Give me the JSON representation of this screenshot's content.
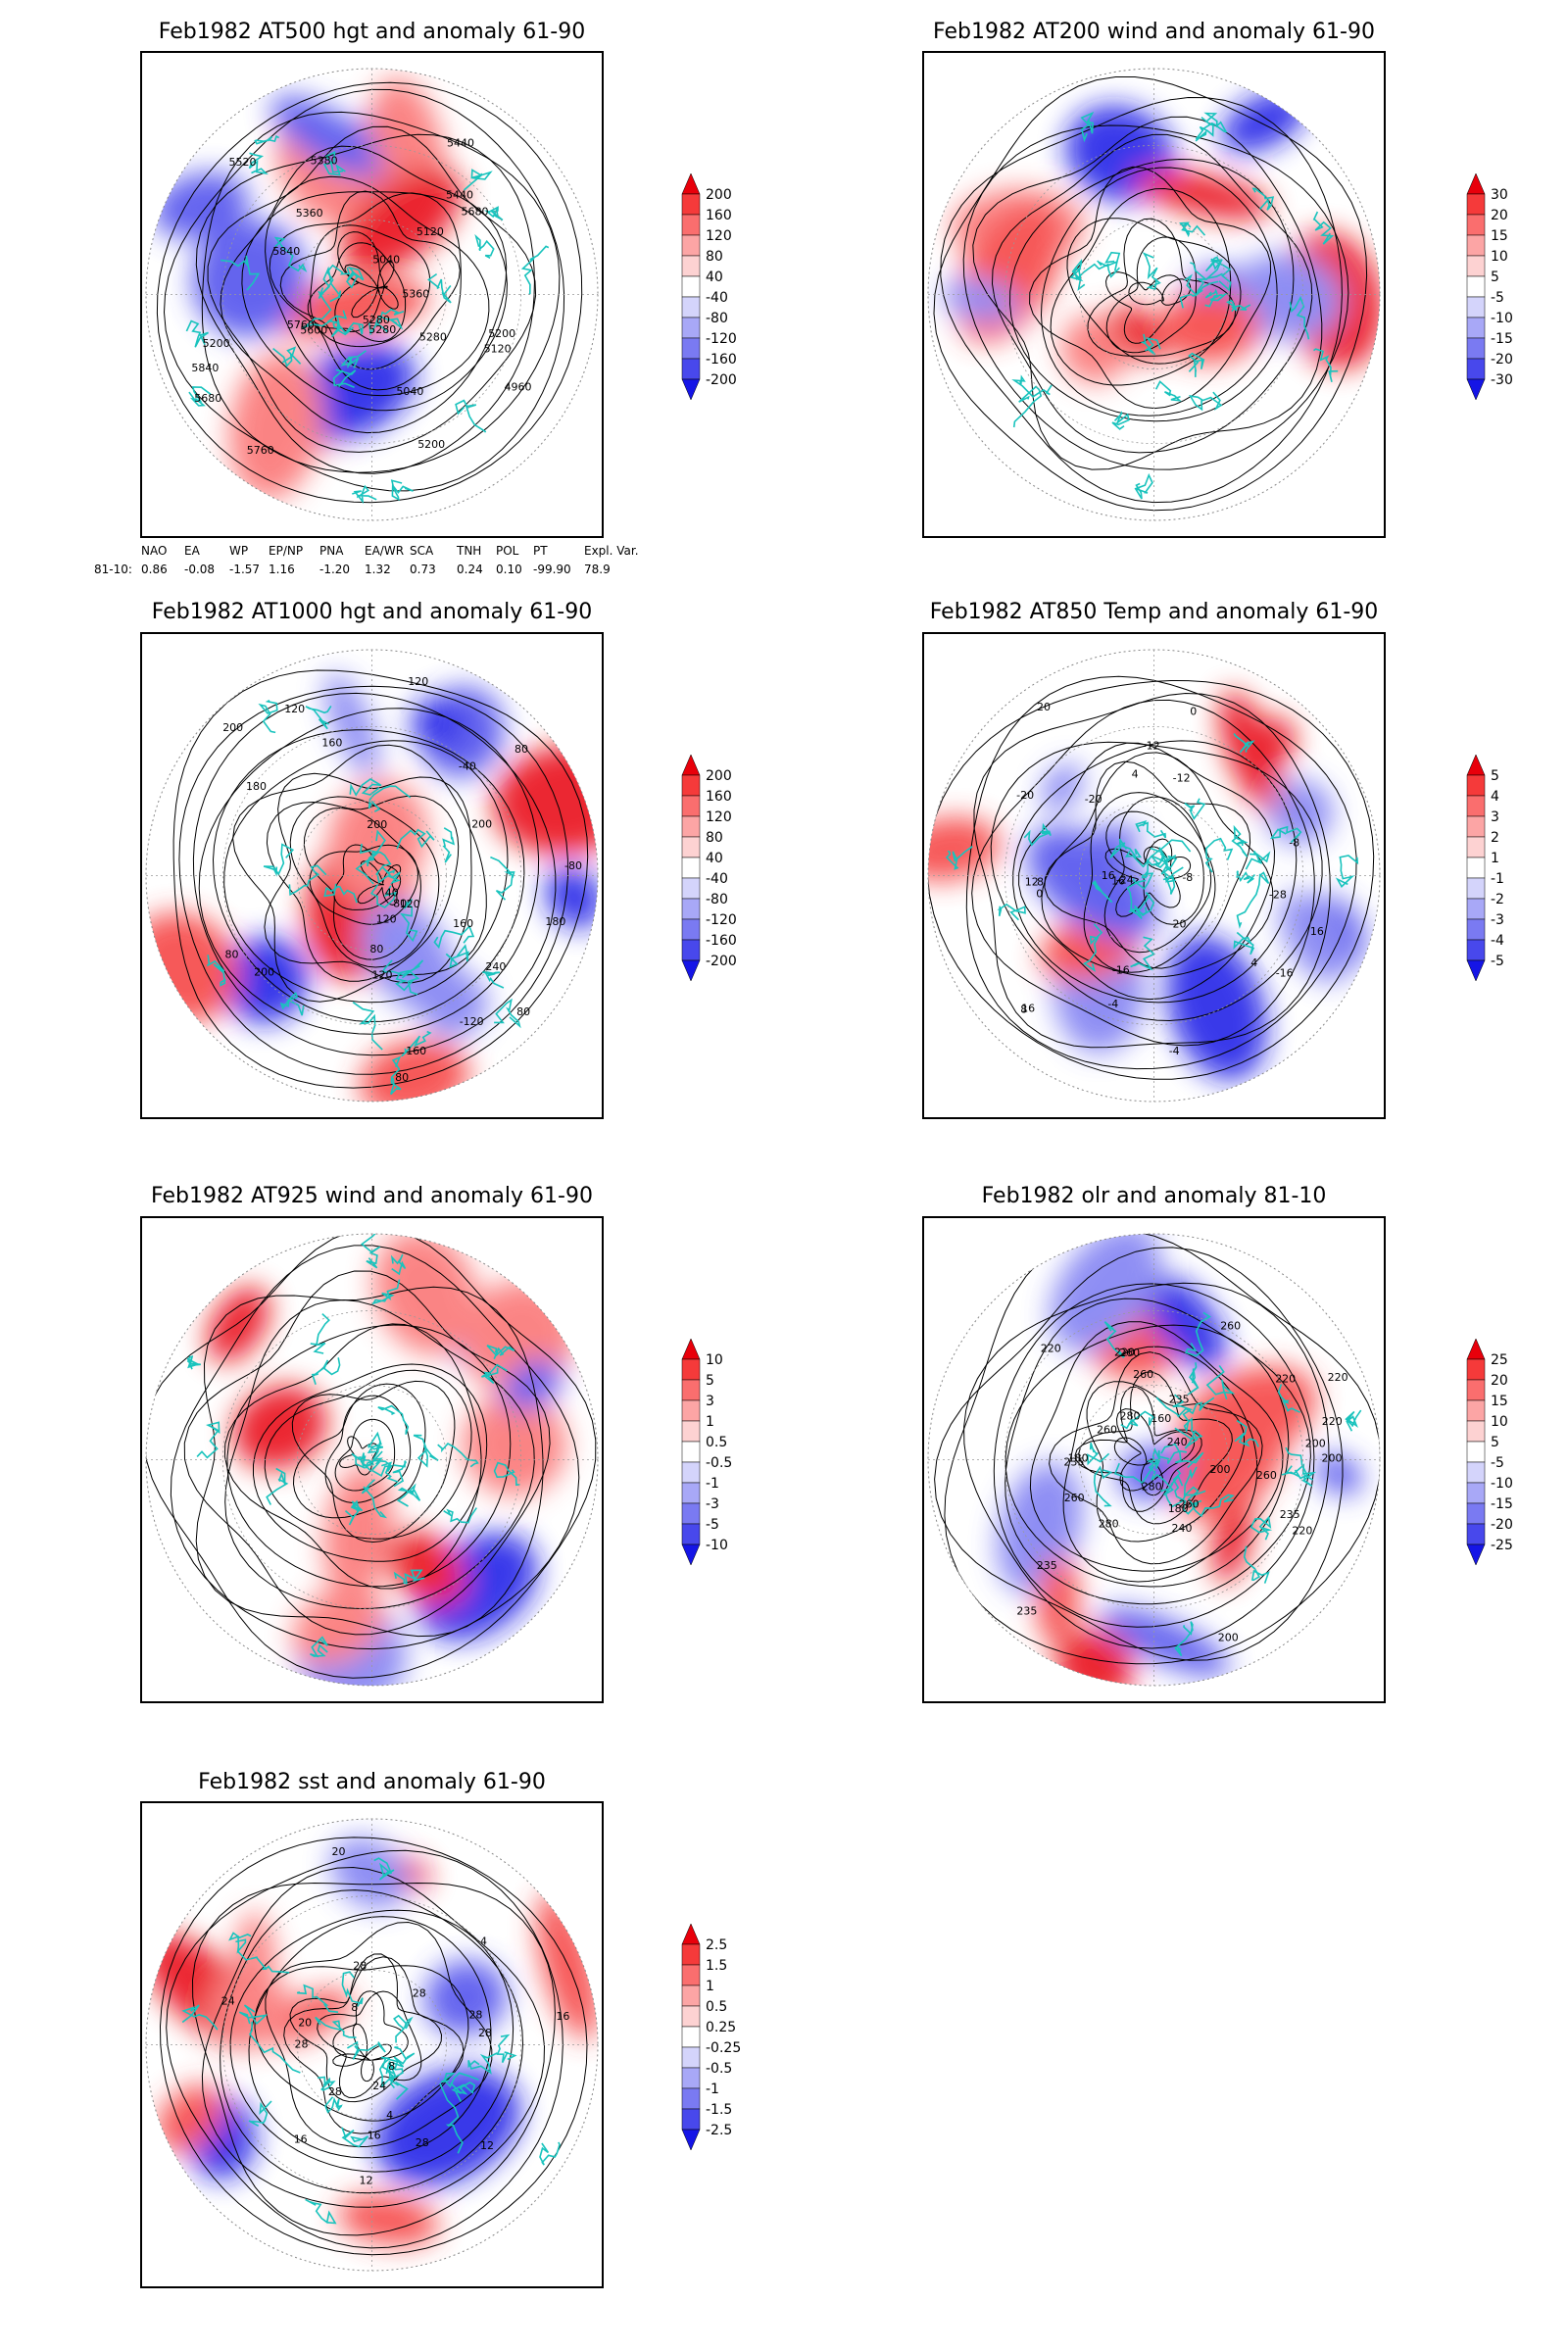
{
  "panels": [
    {
      "id": "p500",
      "title": "Feb1982 AT500 hgt and anomaly 61-90",
      "contour_labels": [
        "5840",
        "5760",
        "5680",
        "5380",
        "5280",
        "5200",
        "5440",
        "5360",
        "5280",
        "5200",
        "5120",
        "5040",
        "4960",
        "5040",
        "5200",
        "5120",
        "5280",
        "5360",
        "5440",
        "5520",
        "5600",
        "5680",
        "5760",
        "5840"
      ],
      "colorbar": {
        "levels": [
          "200",
          "160",
          "120",
          "80",
          "40",
          "-40",
          "-80",
          "-120",
          "-160",
          "-200"
        ],
        "colors": [
          "#e8000b",
          "#f53a3a",
          "#fa6e6e",
          "#fca5a5",
          "#fdd2d2",
          "#ffffff",
          "#d4d4fb",
          "#a8a8f7",
          "#7a7af2",
          "#4848ec",
          "#1515e6"
        ]
      }
    },
    {
      "id": "p200",
      "title": "Feb1982 AT200 wind and anomaly 61-90",
      "contour_labels": [],
      "colorbar": {
        "levels": [
          "30",
          "20",
          "15",
          "10",
          "5",
          "-5",
          "-10",
          "-15",
          "-20",
          "-30"
        ],
        "colors": [
          "#e8000b",
          "#f53a3a",
          "#fa6e6e",
          "#fca5a5",
          "#fdd2d2",
          "#ffffff",
          "#d4d4fb",
          "#a8a8f7",
          "#7a7af2",
          "#4848ec",
          "#1515e6"
        ]
      }
    },
    {
      "id": "p1000",
      "title": "Feb1982 AT1000 hgt and anomaly 61-90",
      "contour_labels": [
        "80",
        "80",
        "120",
        "160",
        "80",
        "120",
        "200",
        "80",
        "40",
        "160",
        "180",
        "120",
        "200",
        "240",
        "-80",
        "-120",
        "200",
        "160",
        "120",
        "-40",
        "200",
        "80",
        "120",
        "80",
        "180"
      ],
      "colorbar": {
        "levels": [
          "200",
          "160",
          "120",
          "80",
          "40",
          "-40",
          "-80",
          "-120",
          "-160",
          "-200"
        ],
        "colors": [
          "#e8000b",
          "#f53a3a",
          "#fa6e6e",
          "#fca5a5",
          "#fdd2d2",
          "#ffffff",
          "#d4d4fb",
          "#a8a8f7",
          "#7a7af2",
          "#4848ec",
          "#1515e6"
        ]
      }
    },
    {
      "id": "p850",
      "title": "Feb1982 AT850 Temp and anomaly 61-90",
      "contour_labels": [
        "16",
        "8",
        "4",
        "0",
        "-4",
        "-12",
        "-8",
        "-16",
        "-20",
        "-24",
        "-28",
        "-20",
        "-16",
        "-12",
        "-8",
        "-4",
        "0",
        "4",
        "8",
        "12",
        "16",
        "20",
        "20",
        "16",
        "16"
      ],
      "colorbar": {
        "levels": [
          "5",
          "4",
          "3",
          "2",
          "1",
          "-1",
          "-2",
          "-3",
          "-4",
          "-5"
        ],
        "colors": [
          "#e8000b",
          "#f53a3a",
          "#fa6e6e",
          "#fca5a5",
          "#fdd2d2",
          "#ffffff",
          "#d4d4fb",
          "#a8a8f7",
          "#7a7af2",
          "#4848ec",
          "#1515e6"
        ]
      }
    },
    {
      "id": "p925",
      "title": "Feb1982 AT925 wind and anomaly 61-90",
      "contour_labels": [],
      "colorbar": {
        "levels": [
          "10",
          "5",
          "3",
          "1",
          "0.5",
          "-0.5",
          "-1",
          "-3",
          "-5",
          "-10"
        ],
        "colors": [
          "#e8000b",
          "#f53a3a",
          "#fa6e6e",
          "#fca5a5",
          "#fdd2d2",
          "#ffffff",
          "#d4d4fb",
          "#a8a8f7",
          "#7a7af2",
          "#4848ec",
          "#1515e6"
        ]
      }
    },
    {
      "id": "polr",
      "title": "Feb1982 olr and anomaly 81-10",
      "contour_labels": [
        "260",
        "240",
        "220",
        "200",
        "220",
        "260",
        "235",
        "220",
        "280",
        "220",
        "200",
        "180",
        "160",
        "200",
        "240",
        "260",
        "180",
        "200",
        "220",
        "260",
        "280",
        "235",
        "235",
        "260",
        "280",
        "260",
        "220",
        "235",
        "235",
        "260"
      ],
      "colorbar": {
        "levels": [
          "25",
          "20",
          "15",
          "10",
          "5",
          "-5",
          "-10",
          "-15",
          "-20",
          "-25"
        ],
        "colors": [
          "#e8000b",
          "#f53a3a",
          "#fa6e6e",
          "#fca5a5",
          "#fdd2d2",
          "#ffffff",
          "#d4d4fb",
          "#a8a8f7",
          "#7a7af2",
          "#4848ec",
          "#1515e6"
        ]
      }
    },
    {
      "id": "psst",
      "title": "Feb1982 sst and anomaly 61-90",
      "contour_labels": [
        "28",
        "24",
        "20",
        "16",
        "12",
        "8",
        "4",
        "28",
        "28",
        "28",
        "28",
        "16",
        "12",
        "8",
        "4",
        "20",
        "16",
        "24",
        "28",
        "28"
      ],
      "colorbar": {
        "levels": [
          "2.5",
          "1.5",
          "1",
          "0.5",
          "0.25",
          "-0.25",
          "-0.5",
          "-1",
          "-1.5",
          "-2.5"
        ],
        "colors": [
          "#e8000b",
          "#f53a3a",
          "#fa6e6e",
          "#fca5a5",
          "#fdd2d2",
          "#ffffff",
          "#d4d4fb",
          "#a8a8f7",
          "#7a7af2",
          "#4848ec",
          "#1515e6"
        ]
      }
    }
  ],
  "indices": {
    "headers": [
      "NAO",
      "EA",
      "WP",
      "EP/NP",
      "PNA",
      "EA/WR",
      "SCA",
      "TNH",
      "POL",
      "PT",
      "Expl. Var."
    ],
    "row_label": "81-10:",
    "values": [
      "0.86",
      "-0.08",
      "-1.57",
      "1.16",
      "-1.20",
      "1.32",
      "0.73",
      "0.24",
      "0.10",
      "-99.90",
      "78.9"
    ]
  }
}
